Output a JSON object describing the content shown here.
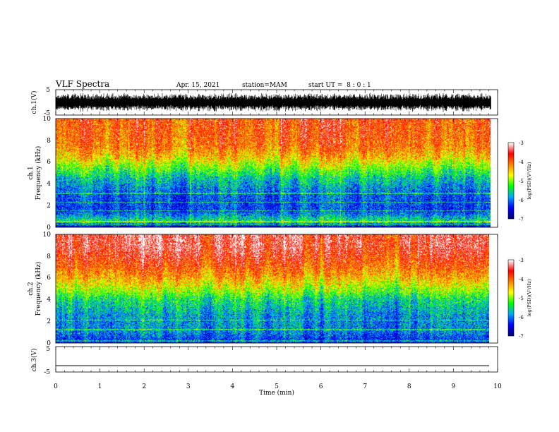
{
  "header": {
    "title": "VLF Spectra",
    "date": "Apr. 15, 2021",
    "station": "station=MAM",
    "start": "start UT =  8 : 0 : 1"
  },
  "colors": {
    "waveform": "#000000",
    "axis": "#000000",
    "background": "#ffffff"
  },
  "chart_data": [
    {
      "type": "line",
      "panel": "ch1-waveform",
      "ylabel": "ch.1(V)",
      "ylim": [
        -5,
        5
      ],
      "y_ticks": [
        "5",
        "-5"
      ],
      "x_range_min": [
        0,
        10
      ],
      "data_extent_min": [
        0,
        9.85
      ],
      "approx_band_V": [
        -3.8,
        3.8
      ]
    },
    {
      "type": "heatmap",
      "panel": "ch1-spectrogram",
      "ylabel": "ch.1",
      "ylabel2": "Frequency (kHz)",
      "ylim": [
        0,
        10
      ],
      "y_ticks": [
        "0",
        "2",
        "4",
        "6",
        "8",
        "10"
      ],
      "x_range_min": [
        0,
        10
      ],
      "data_extent_min": [
        0,
        9.85
      ],
      "colorbar": {
        "label": "log(PSD)(V²/Hz)",
        "range": [
          -7,
          -3
        ],
        "ticks": [
          "-3",
          "-4",
          "-5",
          "-6",
          "-7"
        ],
        "colormap": [
          "#000080",
          "#0000ff",
          "#00aaff",
          "#00ff00",
          "#ffff00",
          "#ff8000",
          "#ff0000",
          "#ffffff"
        ]
      },
      "mean_log_psd_profile": [
        {
          "khz": 0.0,
          "val": -6.6
        },
        {
          "khz": 0.5,
          "val": -5.4
        },
        {
          "khz": 1.5,
          "val": -6.2
        },
        {
          "khz": 3.0,
          "val": -6.1
        },
        {
          "khz": 4.5,
          "val": -5.6
        },
        {
          "khz": 5.5,
          "val": -5.0
        },
        {
          "khz": 6.5,
          "val": -4.4
        },
        {
          "khz": 7.5,
          "val": -4.0
        },
        {
          "khz": 8.5,
          "val": -3.9
        },
        {
          "khz": 10.0,
          "val": -3.8
        }
      ]
    },
    {
      "type": "heatmap",
      "panel": "ch2-spectrogram",
      "ylabel": "ch.2",
      "ylabel2": "Frequency (kHz)",
      "ylim": [
        0,
        10
      ],
      "y_ticks": [
        "0",
        "2",
        "4",
        "6",
        "8",
        "10"
      ],
      "x_range_min": [
        0,
        10
      ],
      "data_extent_min": [
        0,
        9.85
      ],
      "colorbar": {
        "label": "log(PSD)(V²/Hz)",
        "range": [
          -7,
          -3
        ],
        "ticks": [
          "-3",
          "-4",
          "-5",
          "-6",
          "-7"
        ],
        "colormap": [
          "#000080",
          "#0000ff",
          "#00aaff",
          "#00ff00",
          "#ffff00",
          "#ff8000",
          "#ff0000",
          "#ffffff"
        ]
      },
      "mean_log_psd_profile": [
        {
          "khz": 0.0,
          "val": -6.4
        },
        {
          "khz": 1.0,
          "val": -6.0
        },
        {
          "khz": 2.5,
          "val": -5.9
        },
        {
          "khz": 4.0,
          "val": -5.5
        },
        {
          "khz": 5.0,
          "val": -4.9
        },
        {
          "khz": 6.0,
          "val": -4.4
        },
        {
          "khz": 7.0,
          "val": -4.0
        },
        {
          "khz": 8.0,
          "val": -3.7
        },
        {
          "khz": 9.0,
          "val": -3.5
        },
        {
          "khz": 10.0,
          "val": -3.5
        }
      ]
    },
    {
      "type": "line",
      "panel": "ch3-waveform",
      "ylabel": "ch.3(V)",
      "ylim": [
        -5,
        5
      ],
      "y_ticks": [
        "5",
        "-5"
      ],
      "x_range_min": [
        0,
        10
      ],
      "data_extent_min": [
        0,
        10
      ],
      "constant_value_V": -2.5,
      "xlabel": "Time (min)",
      "x_ticks": [
        "0",
        "1",
        "2",
        "3",
        "4",
        "5",
        "6",
        "7",
        "8",
        "9",
        "10"
      ]
    }
  ]
}
